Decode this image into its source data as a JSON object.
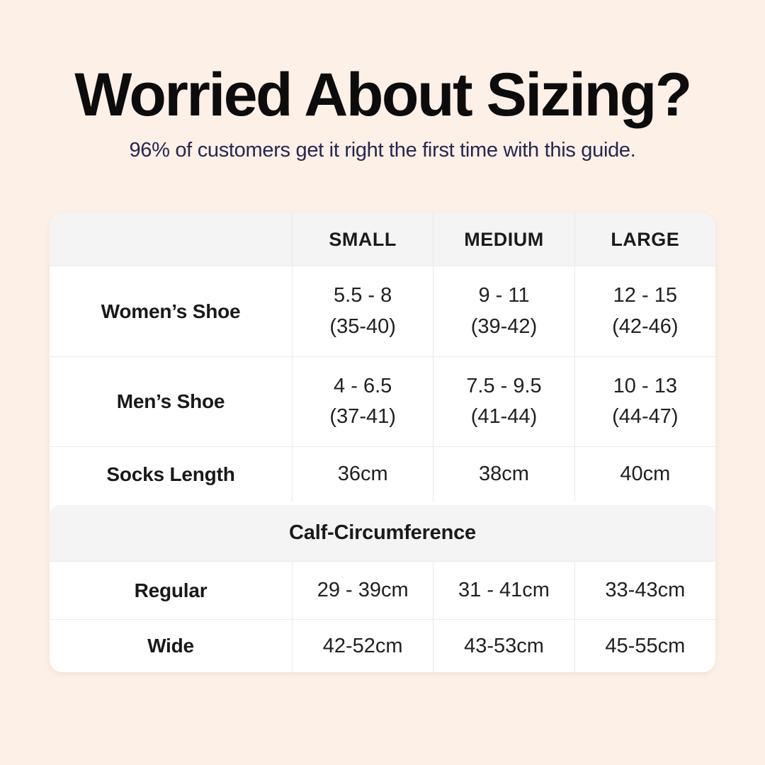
{
  "header": {
    "title": "Worried About Sizing?",
    "subtitle": "96% of customers get it right the first time with this guide."
  },
  "table": {
    "column_headers": [
      "SMALL",
      "MEDIUM",
      "LARGE"
    ],
    "rows": [
      {
        "label": "Women’s Shoe",
        "cells": [
          {
            "line1": "5.5 - 8",
            "line2": "(35-40)"
          },
          {
            "line1": "9 - 11",
            "line2": "(39-42)"
          },
          {
            "line1": "12 - 15",
            "line2": "(42-46)"
          }
        ]
      },
      {
        "label": "Men’s Shoe",
        "cells": [
          {
            "line1": "4 - 6.5",
            "line2": "(37-41)"
          },
          {
            "line1": "7.5 - 9.5",
            "line2": "(41-44)"
          },
          {
            "line1": "10 - 13",
            "line2": "(44-47)"
          }
        ]
      },
      {
        "label": "Socks Length",
        "cells": [
          {
            "line1": "36cm"
          },
          {
            "line1": "38cm"
          },
          {
            "line1": "40cm"
          }
        ]
      }
    ],
    "section": {
      "title": "Calf-Circumference",
      "rows": [
        {
          "label": "Regular",
          "cells": [
            {
              "line1": "29 - 39cm"
            },
            {
              "line1": "31 - 41cm"
            },
            {
              "line1": "33-43cm"
            }
          ]
        },
        {
          "label": "Wide",
          "cells": [
            {
              "line1": "42-52cm"
            },
            {
              "line1": "43-53cm"
            },
            {
              "line1": "45-55cm"
            }
          ]
        }
      ]
    }
  },
  "colors": {
    "background": "#fcf0e7",
    "card": "#ffffff",
    "table_header_bg": "#f5f4f4",
    "divider": "#eceae9",
    "title_text": "#0c0c0c",
    "subtitle_text": "#272750",
    "body_text": "#212121"
  },
  "chart_data": {
    "type": "table",
    "title": "Worried About Sizing?",
    "subtitle": "96% of customers get it right the first time with this guide.",
    "columns": [
      "",
      "SMALL",
      "MEDIUM",
      "LARGE"
    ],
    "rows": [
      [
        "Women’s Shoe",
        "5.5 - 8 (35-40)",
        "9 - 11 (39-42)",
        "12 - 15 (42-46)"
      ],
      [
        "Men’s Shoe",
        "4 - 6.5 (37-41)",
        "7.5 - 9.5 (41-44)",
        "10 - 13 (44-47)"
      ],
      [
        "Socks Length",
        "36cm",
        "38cm",
        "40cm"
      ],
      [
        "Calf-Circumference",
        "",
        "",
        ""
      ],
      [
        "Regular",
        "29 - 39cm",
        "31 - 41cm",
        "33-43cm"
      ],
      [
        "Wide",
        "42-52cm",
        "43-53cm",
        "45-55cm"
      ]
    ],
    "layout": {
      "section_header_row_index": 3,
      "grid": "light-gray horizontal and vertical dividers",
      "header_background": "#f5f4f4",
      "card_background": "#ffffff",
      "page_background": "#fcf0e7"
    }
  }
}
